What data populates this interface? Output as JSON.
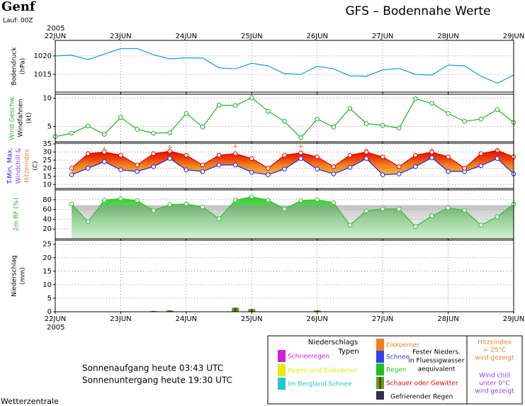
{
  "header": {
    "title": "Genf",
    "run": "Lauf: 00Z",
    "headline": "GFS – Bodennahe Werte",
    "year": "2005"
  },
  "chart_data": [
    {
      "type": "line",
      "ylabel": [
        {
          "text": "Bodendruck",
          "color": "#000000"
        },
        {
          "text": "(hPa)",
          "color": "#000000"
        }
      ],
      "xlim": [
        0,
        168
      ],
      "xticks": [
        {
          "value": 0,
          "label": "22JUN"
        },
        {
          "value": 24,
          "label": "23JUN"
        },
        {
          "value": 48,
          "label": "24JUN"
        },
        {
          "value": 72,
          "label": "25JUN"
        },
        {
          "value": 96,
          "label": "26JUN"
        },
        {
          "value": 120,
          "label": "27JUN"
        },
        {
          "value": 144,
          "label": "28JUN"
        },
        {
          "value": 168,
          "label": "29JUN"
        }
      ],
      "ylim": [
        1010.2,
        1024.2
      ],
      "yticks": [
        1015,
        1020
      ],
      "grid": true,
      "x": [
        0,
        6,
        12,
        18,
        24,
        30,
        36,
        42,
        48,
        54,
        60,
        66,
        72,
        78,
        84,
        90,
        96,
        102,
        108,
        114,
        120,
        126,
        132,
        138,
        144,
        150,
        156,
        162,
        168
      ],
      "series": [
        {
          "name": "Bodendruck",
          "color": "#1a9ad6",
          "marker": "none",
          "values": [
            1020,
            1020.2,
            1019,
            1020.5,
            1022,
            1022,
            1020.3,
            1019.2,
            1019.5,
            1019.4,
            1016.8,
            1016.5,
            1018,
            1017.3,
            1015.2,
            1015,
            1017.2,
            1016.5,
            1014.6,
            1014.5,
            1016.2,
            1016.6,
            1015,
            1014.8,
            1017.5,
            1017.3,
            1014.5,
            1012.6,
            1014.8
          ]
        }
      ]
    },
    {
      "type": "line",
      "ylabel": [
        {
          "text": "Wind Geschw.",
          "color": "#20b020"
        },
        {
          "text": "Windfahnen",
          "color": "#000000"
        },
        {
          "text": "(kt)",
          "color": "#000000"
        }
      ],
      "ylim": [
        2.3,
        10.7
      ],
      "yticks": [
        5,
        10
      ],
      "grid": true,
      "x": [
        0,
        6,
        12,
        18,
        24,
        30,
        36,
        42,
        48,
        54,
        60,
        66,
        72,
        78,
        84,
        90,
        96,
        102,
        108,
        114,
        120,
        126,
        132,
        138,
        144,
        150,
        156,
        162,
        168
      ],
      "series": [
        {
          "name": "Wind",
          "color": "#20b020",
          "marker": "circle",
          "values": [
            3.2,
            3.8,
            5.1,
            3.6,
            6.6,
            4.5,
            3.8,
            3.9,
            7.3,
            4.9,
            8.8,
            8.7,
            10.1,
            7.7,
            5.9,
            3.0,
            6.3,
            4.9,
            8.2,
            5.5,
            5.2,
            4.7,
            9.9,
            9.1,
            7.3,
            5.9,
            6.3,
            8.0,
            5.7
          ]
        }
      ]
    },
    {
      "type": "band",
      "ylabel": [
        {
          "text": "T-Min, Max,",
          "color": "#2020ff"
        },
        {
          "text": "Windchill &",
          "color": "#9040e0"
        },
        {
          "text": "Hitzeindex",
          "color": "#f08030"
        },
        {
          "text": "(C)",
          "color": "#000000"
        }
      ],
      "ylim": [
        7.5,
        35.5
      ],
      "yticks": [
        10,
        15,
        20,
        25,
        30,
        35
      ],
      "grid": true,
      "x": [
        0,
        6,
        12,
        18,
        24,
        30,
        36,
        42,
        48,
        54,
        60,
        66,
        72,
        78,
        84,
        90,
        96,
        102,
        108,
        114,
        120,
        126,
        132,
        138,
        144,
        150,
        156,
        162,
        168
      ],
      "series": [
        {
          "name": "T-Min",
          "color": "#2020ff",
          "marker": "circle",
          "values": [
            null,
            16,
            20,
            24,
            19,
            18,
            21,
            26,
            19,
            18,
            22,
            22,
            17.5,
            16,
            19.5,
            26,
            19.5,
            16.5,
            20.5,
            26,
            16,
            16.5,
            21,
            26.5,
            18,
            18,
            21.5,
            26,
            16.5
          ]
        },
        {
          "name": "T-Max",
          "color": "#e00000",
          "marker": "circle",
          "values": [
            null,
            20,
            29,
            30,
            28,
            22,
            29,
            30.5,
            28,
            22,
            28,
            29,
            26,
            20,
            28,
            29.5,
            27,
            21,
            28,
            30,
            27,
            21,
            28,
            30,
            27,
            20,
            29,
            31,
            27
          ]
        },
        {
          "name": "Hitzeindex",
          "color": "#f08030",
          "marker": "plus",
          "values": [
            null,
            null,
            null,
            32,
            null,
            null,
            null,
            33,
            null,
            null,
            null,
            33.5,
            null,
            null,
            null,
            33.5,
            null,
            null,
            null,
            31.5,
            null,
            null,
            null,
            31.5,
            null,
            null,
            null,
            31.5,
            null
          ]
        }
      ]
    },
    {
      "type": "area",
      "ylabel": [
        {
          "text": "2m RF (%)",
          "color": "#20b020"
        }
      ],
      "ylim": [
        0,
        100
      ],
      "yticks": [
        20,
        40,
        60,
        80
      ],
      "grid": true,
      "x": [
        0,
        6,
        12,
        18,
        24,
        30,
        36,
        42,
        48,
        54,
        60,
        66,
        72,
        78,
        84,
        90,
        96,
        102,
        108,
        114,
        120,
        126,
        132,
        138,
        144,
        150,
        156,
        162,
        168
      ],
      "series": [
        {
          "name": "RF",
          "color": "#30c030",
          "marker": "circle",
          "values": [
            null,
            71,
            35,
            79,
            82,
            78,
            58,
            70,
            71,
            65,
            41,
            79,
            86,
            79,
            61,
            78,
            80,
            74,
            28,
            57,
            61,
            61,
            25,
            47,
            63,
            58,
            28,
            45,
            71
          ]
        }
      ]
    },
    {
      "type": "bar",
      "ylabel": [
        {
          "text": "Niederschlag",
          "color": "#000000"
        },
        {
          "text": "(mm)",
          "color": "#000000"
        }
      ],
      "ylim": [
        0,
        26.5
      ],
      "yticks": [
        0,
        5,
        10,
        15,
        20,
        25
      ],
      "grid": true,
      "x": [
        36,
        42,
        66,
        72,
        96
      ],
      "series": [
        {
          "name": "Niederschlag",
          "color": "#20c020",
          "accent": "#e00000",
          "values": [
            0.3,
            0.5,
            1.5,
            1.0,
            0.5
          ]
        }
      ]
    }
  ],
  "sun": [
    "Sonnenaufgang heute 03:43 UTC",
    "Sonnenuntergang heute 19:30 UTC"
  ],
  "footer": "Wetterzentrale",
  "legend": {
    "title": [
      "Niederschlags",
      "Typen"
    ],
    "items": [
      {
        "text": "Schneeregen",
        "color": "#d020d0"
      },
      {
        "text": "Regen und Eiskoerner",
        "color": "#e8e800"
      },
      {
        "text": "Im Bergland Schnee",
        "color": "#20c8c8"
      },
      {
        "text": "Eiskoerner",
        "color": "#f08020"
      },
      {
        "text": "Schnee",
        "color": "#3040f0"
      },
      {
        "text": "Regen",
        "color": "#20c020"
      },
      {
        "text": "Schauer oder Gewitter",
        "color": "#e00000"
      }
    ],
    "note": [
      "Fester Nieders.",
      "in Fluessigwasser",
      "aequivalent"
    ],
    "freezing": {
      "text": "Gefrierender Regen",
      "color": "#303050"
    },
    "heat": {
      "lines": [
        "Hitzeindex",
        "> 25°C",
        "wird gezeigt"
      ],
      "color": "#f08030"
    },
    "chill": {
      "lines": [
        "Wind chill",
        "unter 0°C",
        "wird gezeigt"
      ],
      "color": "#9040e0"
    }
  }
}
